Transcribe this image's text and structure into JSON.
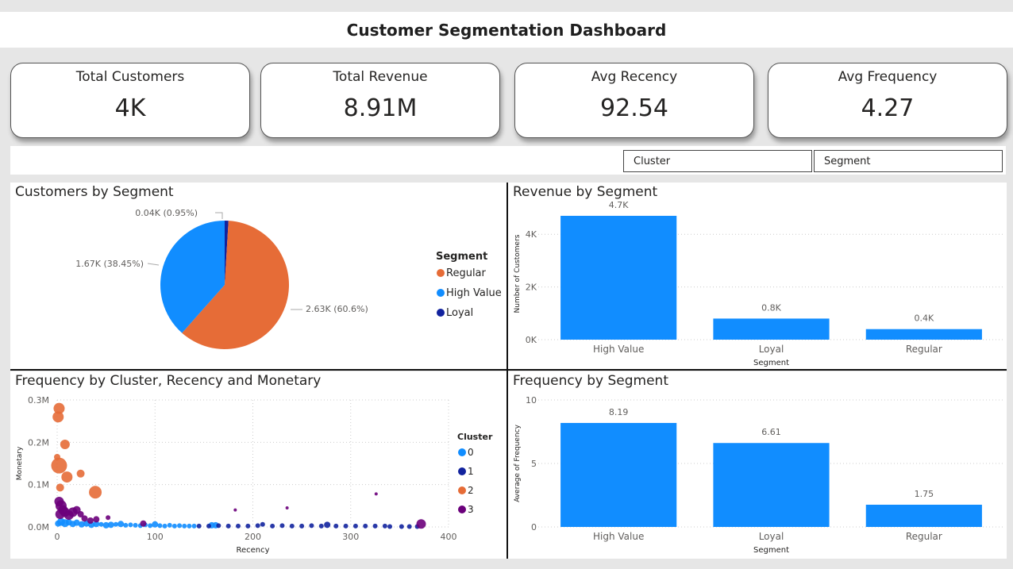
{
  "header": {
    "title": "Customer Segmentation Dashboard"
  },
  "kpis": [
    {
      "label": "Total Customers",
      "value": "4K"
    },
    {
      "label": "Total Revenue",
      "value": "8.91M"
    },
    {
      "label": "Avg Recency",
      "value": "92.54"
    },
    {
      "label": "Avg Frequency",
      "value": "4.27"
    }
  ],
  "slicers": [
    {
      "label": "Cluster"
    },
    {
      "label": "Segment"
    }
  ],
  "colors": {
    "regular": "#e66c37",
    "high_value": "#118dff",
    "loyal": "#12239e",
    "cluster3": "#6b007b",
    "bar": "#118dff"
  },
  "chart_data": [
    {
      "type": "pie",
      "title": "Customers by Segment",
      "legend_title": "Segment",
      "legend_position": "right",
      "slices": [
        {
          "name": "Regular",
          "value": 2.63,
          "percent": 60.6,
          "label": "2.63K (60.6%)",
          "color": "#e66c37"
        },
        {
          "name": "High Value",
          "value": 1.67,
          "percent": 38.45,
          "label": "1.67K (38.45%)",
          "color": "#118dff"
        },
        {
          "name": "Loyal",
          "value": 0.04,
          "percent": 0.95,
          "label": "0.04K (0.95%)",
          "color": "#12239e"
        }
      ]
    },
    {
      "type": "bar",
      "title": "Revenue by Segment",
      "categories": [
        "High Value",
        "Loyal",
        "Regular"
      ],
      "values": [
        4700,
        800,
        400
      ],
      "data_labels": [
        "4.7K",
        "0.8K",
        "0.4K"
      ],
      "xlabel": "Segment",
      "ylabel": "Number of Customers",
      "ylim": [
        0,
        5000
      ],
      "yticks": [
        0,
        2000,
        4000
      ],
      "ytick_labels": [
        "0K",
        "2K",
        "4K"
      ],
      "grid": true
    },
    {
      "type": "scatter",
      "title": "Frequency by Cluster, Recency and Monetary",
      "xlabel": "Recency",
      "ylabel": "Monetary",
      "xlim": [
        0,
        400
      ],
      "ylim": [
        0,
        300000
      ],
      "xticks": [
        0,
        100,
        200,
        300,
        400
      ],
      "yticks": [
        0,
        100000,
        200000,
        300000
      ],
      "ytick_labels": [
        "0.0M",
        "0.1M",
        "0.2M",
        "0.3M"
      ],
      "legend_title": "Cluster",
      "legend_position": "right",
      "grid": true,
      "series": [
        {
          "name": "0",
          "color": "#118dff",
          "points": [
            [
              1,
              8000,
              4
            ],
            [
              4,
              12000,
              5
            ],
            [
              8,
              9000,
              5
            ],
            [
              12,
              11000,
              4
            ],
            [
              16,
              7000,
              4
            ],
            [
              20,
              10000,
              4
            ],
            [
              25,
              6000,
              4
            ],
            [
              30,
              8000,
              4
            ],
            [
              35,
              5000,
              4
            ],
            [
              40,
              7000,
              4
            ],
            [
              45,
              6000,
              3
            ],
            [
              50,
              4000,
              4
            ],
            [
              55,
              5000,
              4
            ],
            [
              60,
              6000,
              3
            ],
            [
              65,
              7000,
              4
            ],
            [
              70,
              4000,
              3
            ],
            [
              75,
              5000,
              3
            ],
            [
              80,
              4000,
              3
            ],
            [
              85,
              3000,
              3
            ],
            [
              90,
              5000,
              3
            ],
            [
              95,
              3000,
              3
            ],
            [
              100,
              6000,
              4
            ],
            [
              105,
              3000,
              3
            ],
            [
              110,
              2000,
              3
            ],
            [
              115,
              4000,
              3
            ],
            [
              120,
              2000,
              3
            ],
            [
              125,
              3000,
              3
            ],
            [
              130,
              2000,
              3
            ],
            [
              135,
              2000,
              3
            ],
            [
              140,
              2000,
              3
            ],
            [
              158,
              4000,
              4
            ],
            [
              162,
              4000,
              4
            ]
          ]
        },
        {
          "name": "1",
          "color": "#12239e",
          "points": [
            [
              145,
              2000,
              3
            ],
            [
              155,
              2000,
              3
            ],
            [
              165,
              3000,
              3
            ],
            [
              175,
              2000,
              3
            ],
            [
              185,
              2000,
              3
            ],
            [
              195,
              2000,
              3
            ],
            [
              205,
              3000,
              3
            ],
            [
              210,
              6000,
              3
            ],
            [
              220,
              2000,
              3
            ],
            [
              230,
              3000,
              3
            ],
            [
              240,
              2000,
              3
            ],
            [
              250,
              2000,
              3
            ],
            [
              260,
              3000,
              3
            ],
            [
              270,
              2000,
              3
            ],
            [
              276,
              5000,
              4
            ],
            [
              285,
              2000,
              3
            ],
            [
              295,
              2000,
              3
            ],
            [
              305,
              2000,
              3
            ],
            [
              315,
              2000,
              3
            ],
            [
              325,
              2000,
              3
            ],
            [
              335,
              2000,
              3
            ],
            [
              340,
              1000,
              3
            ],
            [
              352,
              1000,
              3
            ],
            [
              360,
              1000,
              3
            ],
            [
              368,
              1000,
              3
            ]
          ]
        },
        {
          "name": "2",
          "color": "#e66c37",
          "points": [
            [
              2,
              280000,
              7
            ],
            [
              1,
              260000,
              7
            ],
            [
              8,
              195000,
              6
            ],
            [
              2,
              145000,
              10
            ],
            [
              0,
              165000,
              4
            ],
            [
              10,
              118000,
              7
            ],
            [
              24,
              126000,
              5
            ],
            [
              3,
              93000,
              5
            ],
            [
              39,
              82000,
              8
            ]
          ]
        },
        {
          "name": "3",
          "color": "#6b007b",
          "points": [
            [
              2,
              60000,
              6
            ],
            [
              4,
              50000,
              7
            ],
            [
              6,
              40000,
              6
            ],
            [
              3,
              30000,
              6
            ],
            [
              8,
              35000,
              6
            ],
            [
              12,
              28000,
              6
            ],
            [
              16,
              35000,
              6
            ],
            [
              20,
              40000,
              5
            ],
            [
              24,
              30000,
              4
            ],
            [
              28,
              20000,
              4
            ],
            [
              34,
              15000,
              4
            ],
            [
              40,
              18000,
              4
            ],
            [
              52,
              22000,
              3
            ],
            [
              88,
              8000,
              4
            ],
            [
              182,
              40000,
              2
            ],
            [
              235,
              45000,
              2
            ],
            [
              326,
              78000,
              2
            ],
            [
              372,
              7000,
              6
            ]
          ]
        }
      ]
    },
    {
      "type": "bar",
      "title": "Frequency by Segment",
      "categories": [
        "High Value",
        "Loyal",
        "Regular"
      ],
      "values": [
        8.19,
        6.61,
        1.75
      ],
      "data_labels": [
        "8.19",
        "6.61",
        "1.75"
      ],
      "xlabel": "Segment",
      "ylabel": "Average of Frequency",
      "ylim": [
        0,
        10
      ],
      "yticks": [
        0,
        5,
        10
      ],
      "ytick_labels": [
        "0",
        "5",
        "10"
      ],
      "grid": true
    }
  ]
}
